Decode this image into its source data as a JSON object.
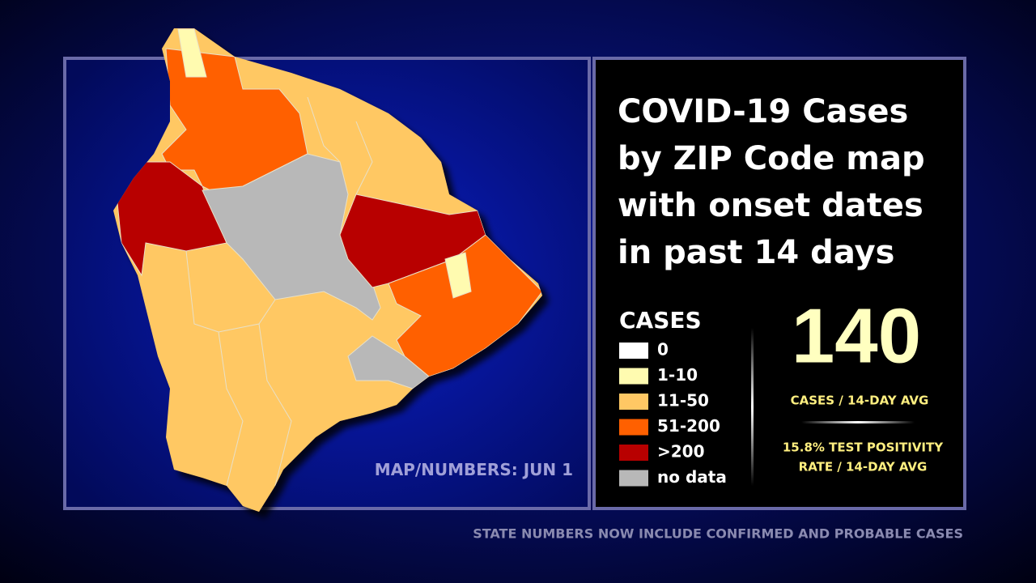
{
  "title": {
    "lines": [
      "COVID-19 Cases",
      "by ZIP Code map",
      "with onset dates",
      "in past 14 days"
    ]
  },
  "legend": {
    "title": "CASES",
    "items": [
      {
        "label": "0",
        "color": "#ffffff"
      },
      {
        "label": "1-10",
        "color": "#fffbb0"
      },
      {
        "label": "11-50",
        "color": "#ffc864"
      },
      {
        "label": "51-200",
        "color": "#ff6000"
      },
      {
        "label": ">200",
        "color": "#b80000"
      },
      {
        "label": "no data",
        "color": "#b8b8b8"
      }
    ]
  },
  "stats": {
    "cases": 140,
    "cases_label": "CASES / 14-DAY AVG",
    "positivity_lines": [
      "15.8% TEST POSITIVITY",
      "RATE / 14-DAY AVG"
    ]
  },
  "date_note": "MAP/NUMBERS: JUN 1",
  "footer": "STATE NUMBERS NOW INCLUDE CONFIRMED AND PROBABLE CASES"
}
